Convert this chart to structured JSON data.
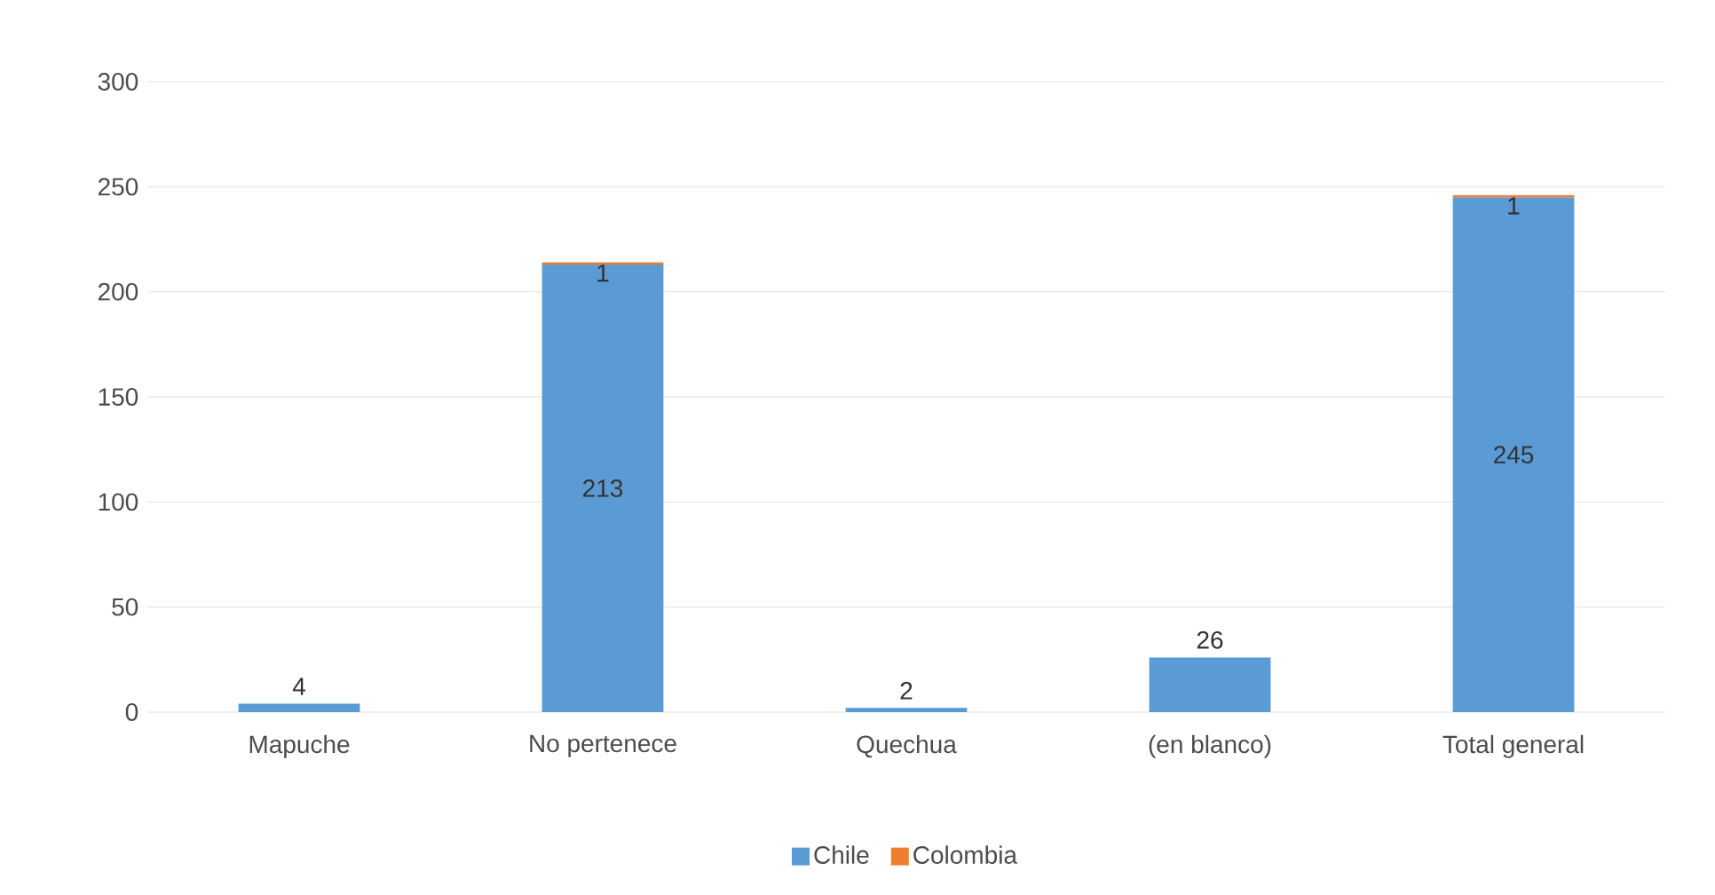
{
  "chart_data": {
    "type": "bar",
    "stacked": true,
    "categories": [
      "Mapuche",
      "No pertenece",
      "Quechua",
      "(en blanco)",
      "Total general"
    ],
    "series": [
      {
        "name": "Chile",
        "color": "#5b9bd5",
        "values": [
          4,
          213,
          2,
          26,
          245
        ]
      },
      {
        "name": "Colombia",
        "color": "#ed7d31",
        "values": [
          null,
          1,
          null,
          null,
          1
        ]
      }
    ],
    "ylim": [
      0,
      300
    ],
    "yticks": [
      0,
      50,
      100,
      150,
      200,
      250,
      300
    ],
    "grid": "y",
    "legend": "bottom",
    "data_labels": true
  }
}
